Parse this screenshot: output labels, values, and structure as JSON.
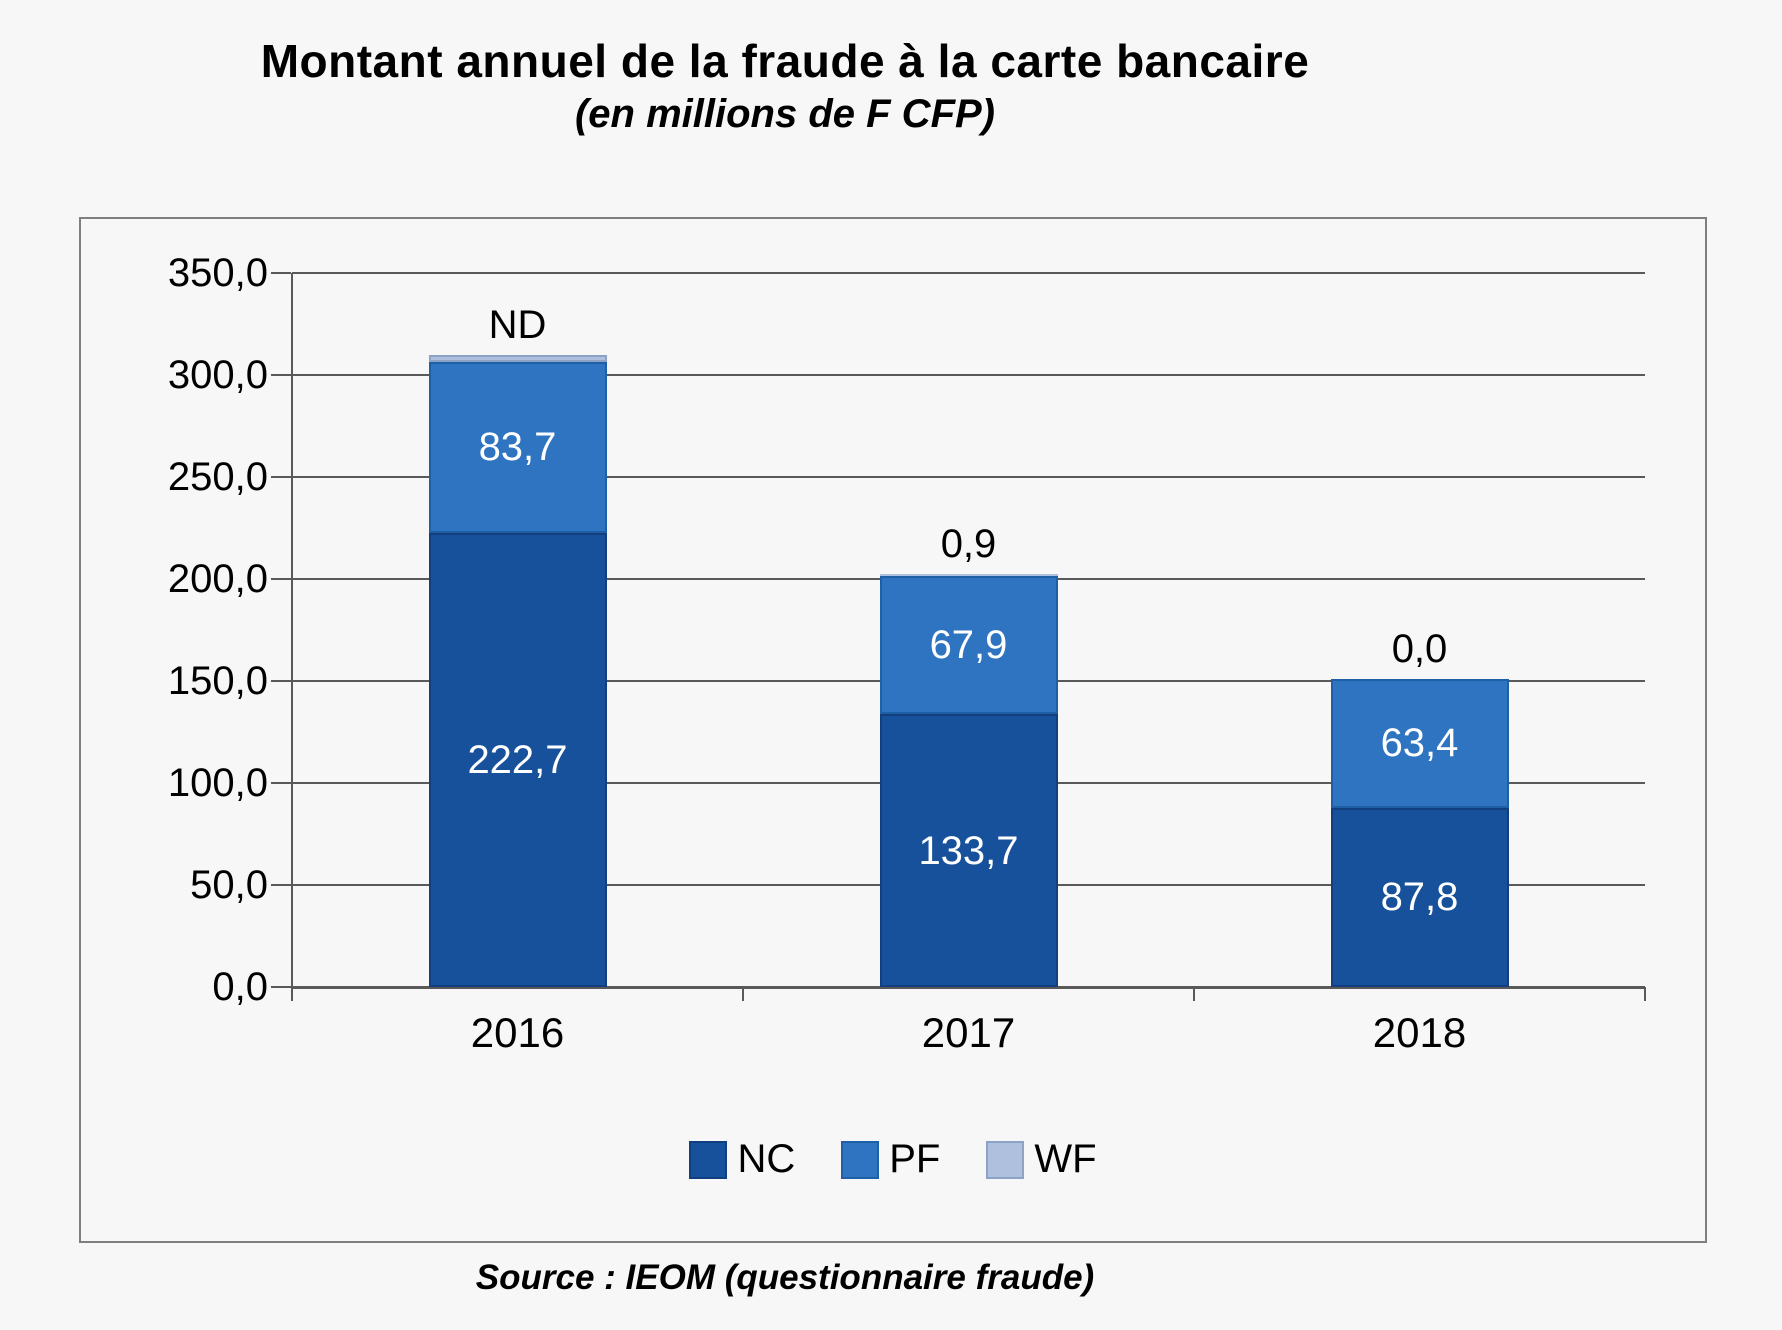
{
  "title": "Montant annuel de la fraude à la carte bancaire",
  "subtitle": "(en millions de F CFP)",
  "source": "Source : IEOM (questionnaire fraude)",
  "colors": {
    "background": "#F7F7F7",
    "frame": "#7F7F7F",
    "grid": "#595959",
    "nc": "#17519B",
    "pf": "#2E74C1",
    "wf": "#AEC0DE"
  },
  "chart_data": {
    "type": "bar",
    "stacked": true,
    "categories": [
      "2016",
      "2017",
      "2018"
    ],
    "series": [
      {
        "name": "NC",
        "color": "#17519B",
        "border": "#12407E",
        "values": [
          222.7,
          133.7,
          87.8
        ],
        "labels": [
          "222,7",
          "133,7",
          "87,8"
        ]
      },
      {
        "name": "PF",
        "color": "#2E74C1",
        "border": "#1F5FA6",
        "values": [
          83.7,
          67.9,
          63.4
        ],
        "labels": [
          "83,7",
          "67,9",
          "63,4"
        ]
      },
      {
        "name": "WF",
        "color": "#AEC0DE",
        "border": "#8CA3C6",
        "values": [
          null,
          0.9,
          0.0
        ],
        "labels": [
          "ND",
          "0,9",
          "0,0"
        ]
      }
    ],
    "ylim": [
      0,
      350
    ],
    "ytick_step": 50,
    "ytick_labels": [
      "0,0",
      "50,0",
      "100,0",
      "150,0",
      "200,0",
      "250,0",
      "300,0",
      "350,0"
    ],
    "grid": true,
    "legend_position": "bottom",
    "nd_render_units": 3.5
  }
}
